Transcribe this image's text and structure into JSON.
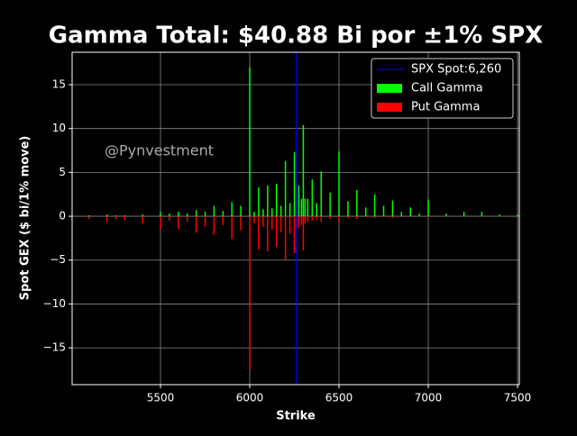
{
  "chart_data": {
    "type": "bar",
    "title": "Gamma Total: $40.88 Bi por ±1% SPX",
    "x_label": "Strike",
    "y_label": "Spot GEX ($ bi/1% move)",
    "annotation": "@Pynvestment",
    "x": [
      5100,
      5200,
      5250,
      5300,
      5400,
      5500,
      5550,
      5600,
      5650,
      5700,
      5750,
      5800,
      5850,
      5900,
      5950,
      6000,
      6025,
      6050,
      6075,
      6100,
      6125,
      6150,
      6175,
      6200,
      6225,
      6250,
      6260,
      6275,
      6290,
      6300,
      6310,
      6325,
      6350,
      6375,
      6400,
      6450,
      6500,
      6550,
      6600,
      6650,
      6700,
      6750,
      6800,
      6850,
      6900,
      6950,
      7000,
      7100,
      7200,
      7300,
      7400,
      7500
    ],
    "series": [
      {
        "name": "Call Gamma",
        "color": "#00ff00",
        "values": [
          0.1,
          0.2,
          0.1,
          0.1,
          0.2,
          0.5,
          0.3,
          0.5,
          0.3,
          0.7,
          0.5,
          1.2,
          0.6,
          1.6,
          1.2,
          17.0,
          0.5,
          3.3,
          0.8,
          3.5,
          0.9,
          3.7,
          1.2,
          6.3,
          1.5,
          7.3,
          1.8,
          3.5,
          2.0,
          10.4,
          2.0,
          2.0,
          4.2,
          1.5,
          5.1,
          2.7,
          7.4,
          1.7,
          3.0,
          1.0,
          2.5,
          1.2,
          1.8,
          0.5,
          1.0,
          0.3,
          1.9,
          0.3,
          0.5,
          0.5,
          0.2,
          0.2
        ]
      },
      {
        "name": "Put Gamma",
        "color": "#ff0000",
        "values": [
          -0.3,
          -0.7,
          -0.3,
          -0.5,
          -0.8,
          -1.5,
          -0.5,
          -1.5,
          -0.6,
          -1.9,
          -1.2,
          -2.1,
          -1.0,
          -2.6,
          -1.6,
          -17.5,
          -0.8,
          -3.8,
          -1.2,
          -4.0,
          -1.5,
          -3.5,
          -1.8,
          -5.0,
          -2.0,
          -4.2,
          -1.5,
          -1.3,
          -1.0,
          -3.9,
          -0.8,
          -0.6,
          -0.5,
          -0.4,
          -0.6,
          -0.3,
          -0.6,
          -0.2,
          -0.3,
          -0.1,
          -0.2,
          -0.1,
          -0.2,
          -0.1,
          -0.1,
          0,
          -0.1,
          0,
          0,
          0,
          0,
          0
        ]
      }
    ],
    "spot": {
      "value": 6260,
      "label": "SPX Spot:6,260",
      "color": "#0000ff"
    },
    "xlim": [
      5005,
      7510
    ],
    "ylim": [
      -19.2,
      18.7
    ],
    "xticks": [
      5500,
      6000,
      6500,
      7000,
      7500
    ],
    "yticks": [
      {
        "value": -15,
        "label": "−15"
      },
      {
        "value": -10,
        "label": "−10"
      },
      {
        "value": -5,
        "label": "−5"
      },
      0,
      5,
      10,
      15
    ],
    "grid": true,
    "legend": "upper right"
  }
}
